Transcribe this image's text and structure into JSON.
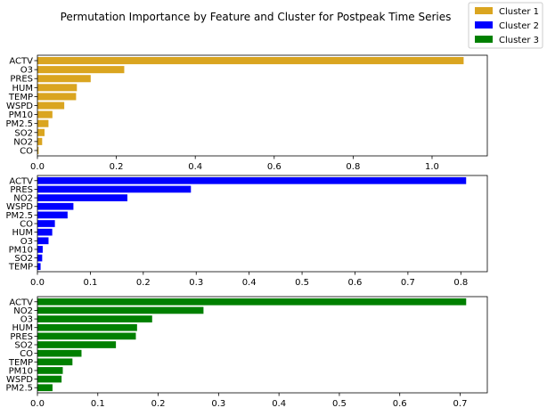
{
  "figure": {
    "title": "Permutation Importance by Feature and Cluster for Postpeak Time Series"
  },
  "legend": {
    "placement": "top-right",
    "entries": [
      {
        "label": "Cluster 1",
        "color": "#DAA520"
      },
      {
        "label": "Cluster 2",
        "color": "#0000FF"
      },
      {
        "label": "Cluster 3",
        "color": "#008000"
      }
    ]
  },
  "chart_data": [
    {
      "type": "bar",
      "orientation": "horizontal",
      "series_name": "Cluster 1",
      "color": "#DAA520",
      "categories": [
        "ACTV",
        "O3",
        "PRES",
        "HUM",
        "TEMP",
        "WSPD",
        "PM10",
        "PM2.5",
        "SO2",
        "NO2",
        "CO"
      ],
      "values": [
        1.08,
        0.22,
        0.135,
        0.1,
        0.098,
        0.068,
        0.038,
        0.028,
        0.018,
        0.012,
        0.003
      ],
      "xlim": [
        0,
        1.14
      ],
      "xticks": [
        0,
        0.2,
        0.4,
        0.6,
        0.8,
        1.0
      ],
      "xtick_labels": [
        "0.0",
        "0.2",
        "0.4",
        "0.6",
        "0.8",
        "1.0"
      ],
      "grid": false
    },
    {
      "type": "bar",
      "orientation": "horizontal",
      "series_name": "Cluster 2",
      "color": "#0000FF",
      "categories": [
        "ACTV",
        "PRES",
        "NO2",
        "WSPD",
        "PM2.5",
        "CO",
        "HUM",
        "O3",
        "PM10",
        "SO2",
        "TEMP"
      ],
      "values": [
        0.81,
        0.29,
        0.17,
        0.068,
        0.057,
        0.033,
        0.028,
        0.021,
        0.01,
        0.009,
        0.006
      ],
      "xlim": [
        0,
        0.85
      ],
      "xticks": [
        0,
        0.1,
        0.2,
        0.3,
        0.4,
        0.5,
        0.6,
        0.7,
        0.8
      ],
      "xtick_labels": [
        "0.0",
        "0.1",
        "0.2",
        "0.3",
        "0.4",
        "0.5",
        "0.6",
        "0.7",
        "0.8"
      ],
      "grid": false
    },
    {
      "type": "bar",
      "orientation": "horizontal",
      "series_name": "Cluster 3",
      "color": "#008000",
      "categories": [
        "ACTV",
        "NO2",
        "O3",
        "HUM",
        "PRES",
        "SO2",
        "CO",
        "TEMP",
        "PM10",
        "WSPD",
        "PM2.5"
      ],
      "values": [
        0.71,
        0.275,
        0.19,
        0.165,
        0.163,
        0.13,
        0.073,
        0.058,
        0.042,
        0.04,
        0.025
      ],
      "xlim": [
        0,
        0.745
      ],
      "xticks": [
        0,
        0.1,
        0.2,
        0.3,
        0.4,
        0.5,
        0.6,
        0.7
      ],
      "xtick_labels": [
        "0.0",
        "0.1",
        "0.2",
        "0.3",
        "0.4",
        "0.5",
        "0.6",
        "0.7"
      ],
      "grid": false
    }
  ]
}
